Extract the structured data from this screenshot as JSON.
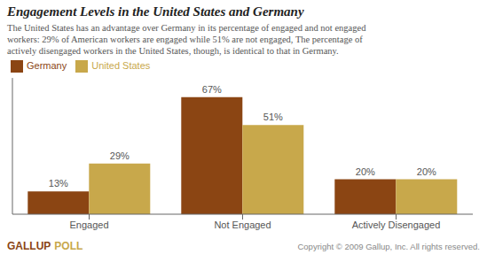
{
  "chart_data": {
    "type": "bar",
    "title": "Engagement Levels in the United States and Germany",
    "subtitle": [
      "The United States has an advantage over Germany in its percentage of engaged and not engaged",
      "workers: 29% of American workers are engaged while 51% are not engaged, The percentage of",
      "actively disengaged workers in the United States, though, is identical to that in Germany."
    ],
    "categories": [
      "Engaged",
      "Not Engaged",
      "Actively Disengaged"
    ],
    "series": [
      {
        "name": "Germany",
        "color": "#8B4513",
        "values": [
          13,
          67,
          20
        ],
        "value_labels": [
          "13%",
          "67%",
          "20%"
        ]
      },
      {
        "name": "United States",
        "color": "#C8A84B",
        "values": [
          29,
          51,
          20
        ],
        "value_labels": [
          "29%",
          "51%",
          "20%"
        ]
      }
    ],
    "ylim": [
      0,
      78
    ],
    "data_labels": true,
    "tick_labels": "x",
    "grid": false,
    "legend": "upper left",
    "annotations": [
      {
        "text": "GALLUP",
        "color": "#8B4513"
      },
      {
        "text": "POLL",
        "color": "#C8A84B"
      },
      {
        "text": "Copyright © 2009 Gallup, Inc. All rights reserved."
      }
    ]
  }
}
